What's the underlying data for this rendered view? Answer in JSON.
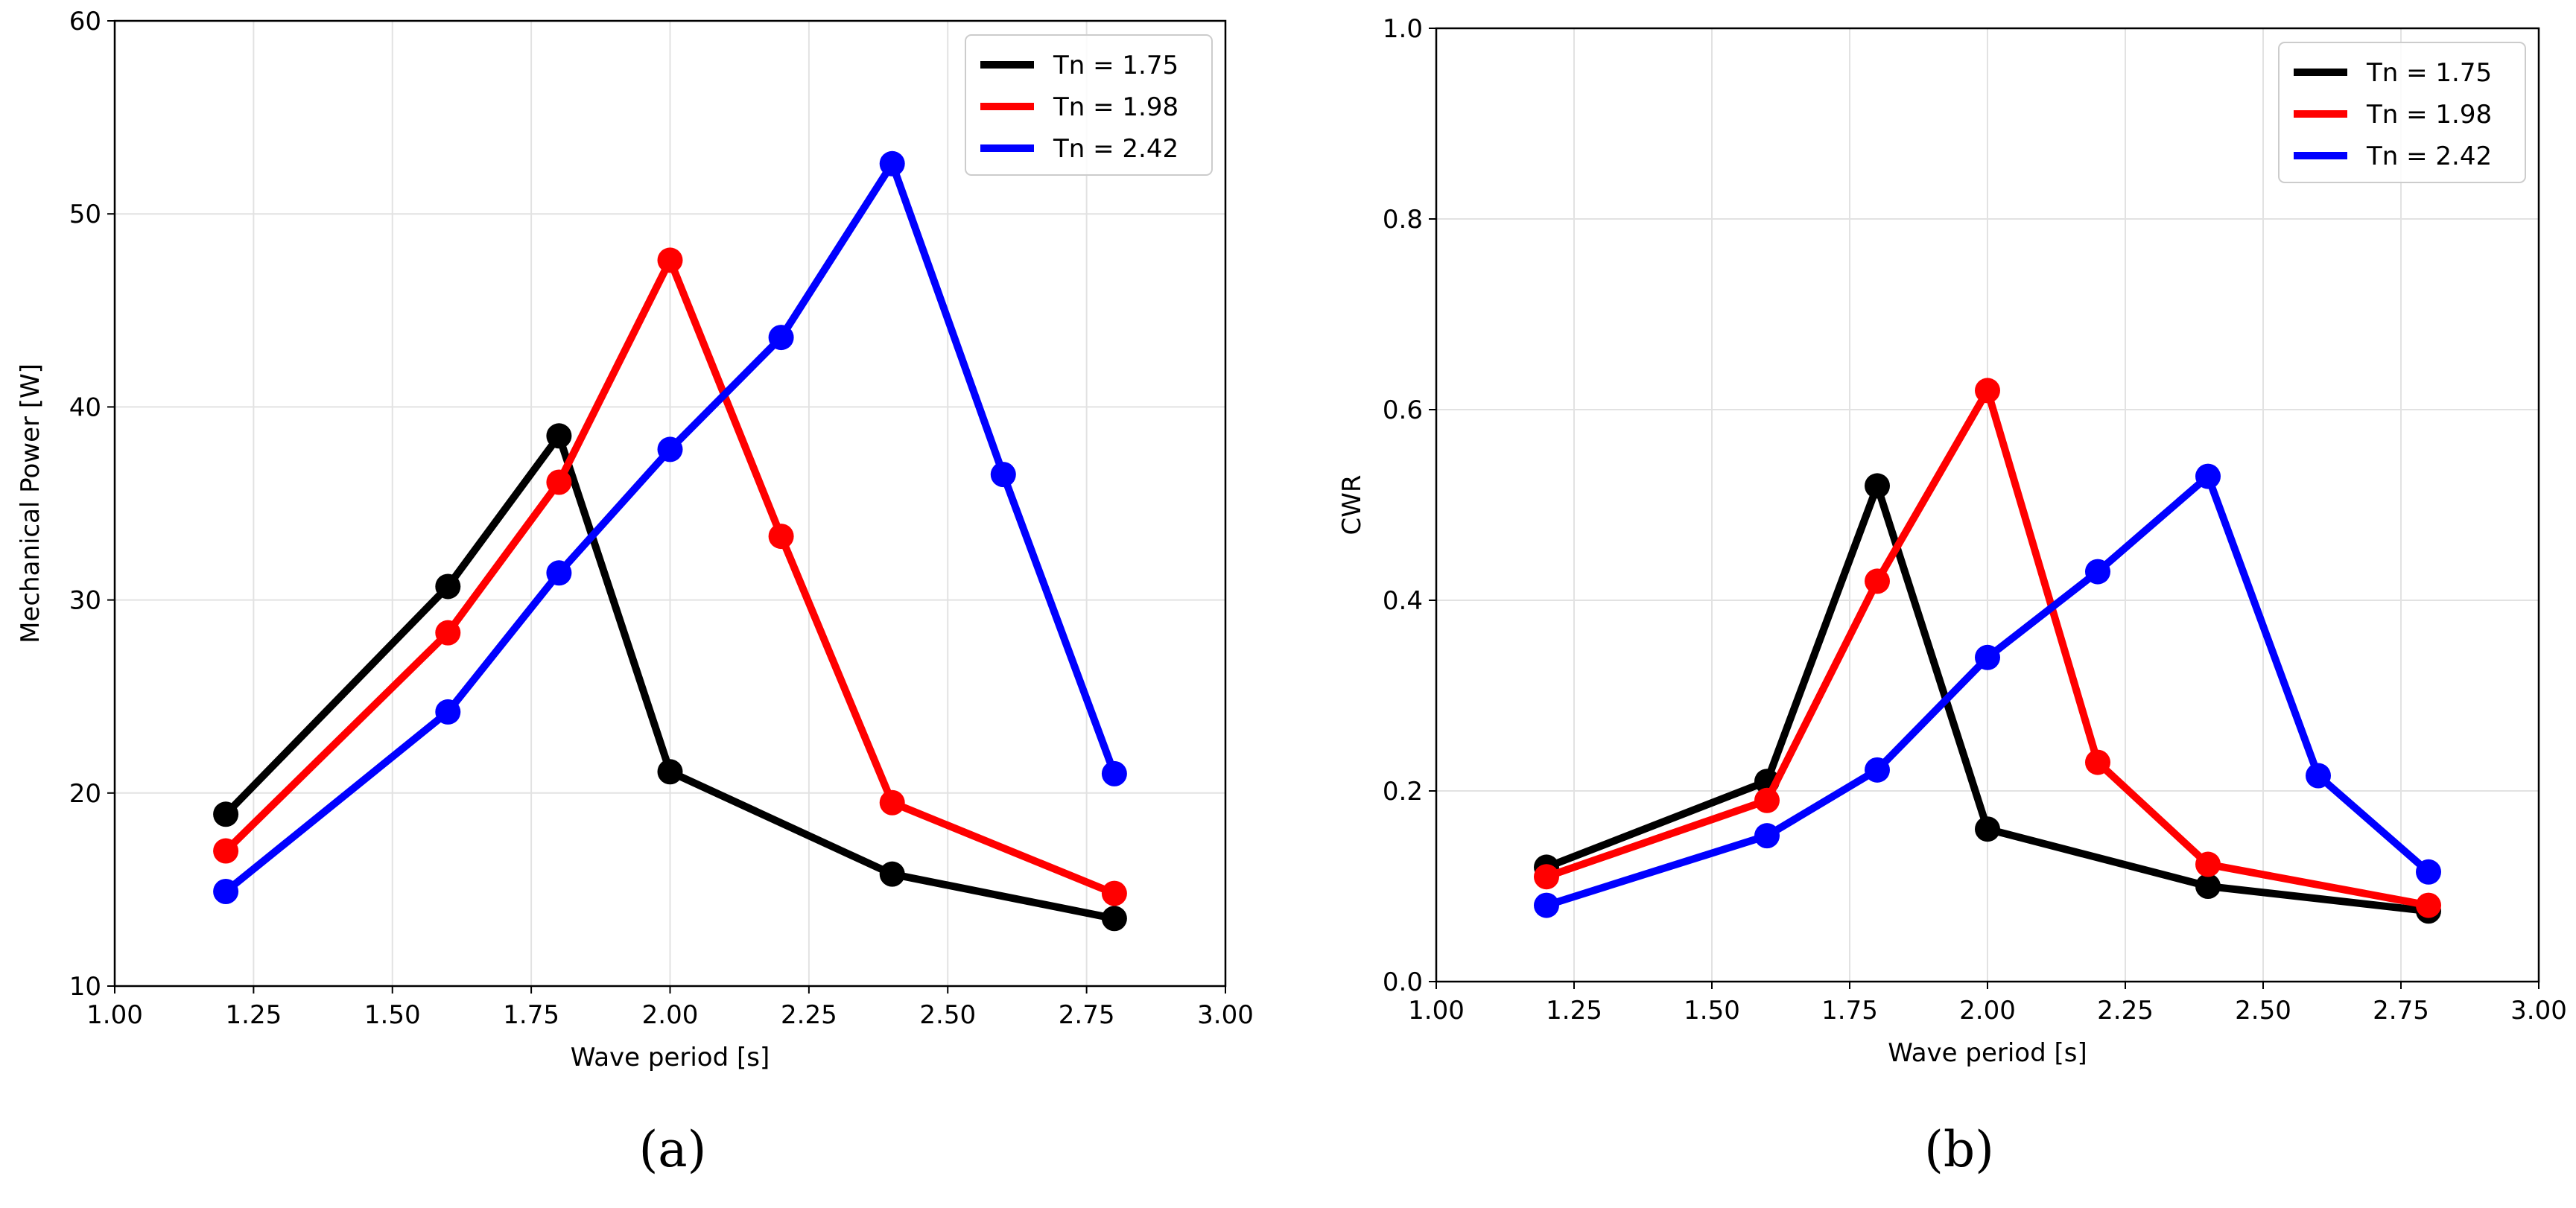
{
  "figure": {
    "captions": [
      "(a)",
      "(b)"
    ]
  },
  "chart_data": [
    {
      "type": "line",
      "panel": "(a)",
      "xlabel": "Wave period [s]",
      "ylabel": "Mechanical Power [W]",
      "xlim": [
        1.0,
        3.0
      ],
      "ylim": [
        10,
        60
      ],
      "xticks": [
        "1.00",
        "1.25",
        "1.50",
        "1.75",
        "2.00",
        "2.25",
        "2.50",
        "2.75",
        "3.00"
      ],
      "yticks": [
        "10",
        "20",
        "30",
        "40",
        "50",
        "60"
      ],
      "grid": true,
      "legend_position": "top-right",
      "series": [
        {
          "name": "Tn = 1.75",
          "color": "#000000",
          "x": [
            1.2,
            1.6,
            1.8,
            2.0,
            2.4,
            2.8
          ],
          "y": [
            18.9,
            30.7,
            38.5,
            21.1,
            15.8,
            13.5
          ]
        },
        {
          "name": "Tn = 1.98",
          "color": "#ff0000",
          "x": [
            1.2,
            1.6,
            1.8,
            2.0,
            2.2,
            2.4,
            2.8
          ],
          "y": [
            17.0,
            28.3,
            36.1,
            47.6,
            33.3,
            19.5,
            14.8
          ]
        },
        {
          "name": "Tn = 2.42",
          "color": "#0000ff",
          "x": [
            1.2,
            1.6,
            1.8,
            2.0,
            2.2,
            2.4,
            2.6,
            2.8
          ],
          "y": [
            14.9,
            24.2,
            31.4,
            37.8,
            43.6,
            52.6,
            36.5,
            21.0
          ]
        }
      ]
    },
    {
      "type": "line",
      "panel": "(b)",
      "xlabel": "Wave period [s]",
      "ylabel": "CWR",
      "xlim": [
        1.0,
        3.0
      ],
      "ylim": [
        0.0,
        1.0
      ],
      "xticks": [
        "1.00",
        "1.25",
        "1.50",
        "1.75",
        "2.00",
        "2.25",
        "2.50",
        "2.75",
        "3.00"
      ],
      "yticks": [
        "0.0",
        "0.2",
        "0.4",
        "0.6",
        "0.8",
        "1.0"
      ],
      "grid": true,
      "legend_position": "top-right",
      "series": [
        {
          "name": "Tn = 1.75",
          "color": "#000000",
          "x": [
            1.2,
            1.6,
            1.8,
            2.0,
            2.4,
            2.8
          ],
          "y": [
            0.12,
            0.21,
            0.52,
            0.16,
            0.1,
            0.074
          ]
        },
        {
          "name": "Tn = 1.98",
          "color": "#ff0000",
          "x": [
            1.2,
            1.6,
            1.8,
            2.0,
            2.2,
            2.4,
            2.8
          ],
          "y": [
            0.11,
            0.19,
            0.42,
            0.62,
            0.23,
            0.123,
            0.08
          ]
        },
        {
          "name": "Tn = 2.42",
          "color": "#0000ff",
          "x": [
            1.2,
            1.6,
            1.8,
            2.0,
            2.2,
            2.4,
            2.6,
            2.8
          ],
          "y": [
            0.08,
            0.153,
            0.222,
            0.34,
            0.43,
            0.53,
            0.216,
            0.115
          ]
        }
      ]
    }
  ]
}
